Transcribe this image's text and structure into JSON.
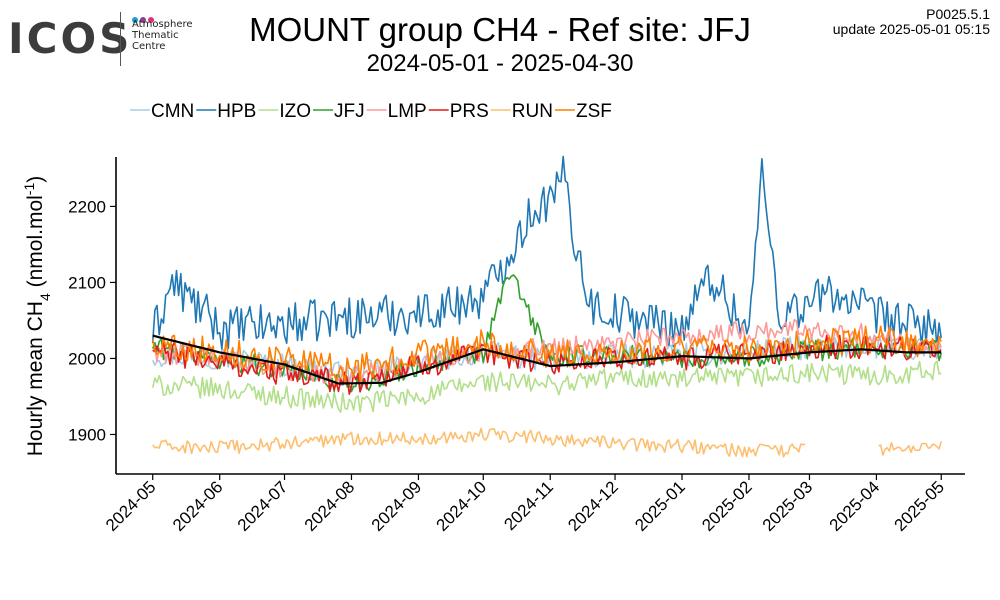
{
  "logo": {
    "word": "ICOS",
    "lines": [
      "Atmosphere",
      "Thematic",
      "Centre"
    ],
    "dot_colors": [
      "#1a9fd9",
      "#8e3c96",
      "#e72f78"
    ]
  },
  "header": {
    "version": "P0025.5.1",
    "update": "update  2025-05-01 05:15"
  },
  "chart_data": {
    "type": "line",
    "title": "MOUNT group CH4 - Ref site: JFJ",
    "subtitle": "2024-05-01 - 2025-04-30",
    "ylabel": "Hourly mean",
    "ylim": [
      1848,
      2265
    ],
    "yticks": [
      1900,
      2000,
      2100,
      2200
    ],
    "xlim": [
      "2024-04-14",
      "2025-05-12"
    ],
    "xticks": [
      "2024-05",
      "2024-06",
      "2024-07",
      "2024-08",
      "2024-09",
      "2024-10",
      "2024-11",
      "2024-12",
      "2025-01",
      "2025-02",
      "2025-03",
      "2025-04",
      "2025-05"
    ],
    "legend_position": "top",
    "grid": false,
    "series": [
      {
        "name": "CMN",
        "color": "#a6cee3",
        "x": [
          "2024-05-01",
          "2024-06-01",
          "2024-07-01",
          "2024-08-01",
          "2024-09-01",
          "2024-10-01",
          "2024-11-01",
          "2024-12-01",
          "2025-01-01",
          "2025-02-01",
          "2025-03-01",
          "2025-04-01",
          "2025-05-01"
        ],
        "y": [
          2005,
          2002,
          1992,
          1978,
          1995,
          2008,
          1998,
          2002,
          2005,
          2008,
          2015,
          2015,
          2010
        ]
      },
      {
        "name": "HPB",
        "color": "#1f78b4",
        "x": [
          "2024-05-01",
          "2024-05-10",
          "2024-06-01",
          "2024-07-01",
          "2024-08-01",
          "2024-09-01",
          "2024-10-01",
          "2024-10-25",
          "2024-11-03",
          "2024-11-08",
          "2024-11-12",
          "2024-11-20",
          "2024-12-01",
          "2025-01-01",
          "2025-01-14",
          "2025-02-01",
          "2025-02-07",
          "2025-02-15",
          "2025-03-01",
          "2025-03-10",
          "2025-04-01",
          "2025-04-15",
          "2025-05-01"
        ],
        "y": [
          2030,
          2100,
          2040,
          2045,
          2055,
          2060,
          2080,
          2200,
          2210,
          2248,
          2160,
          2070,
          2060,
          2040,
          2110,
          2035,
          2245,
          2060,
          2070,
          2090,
          2055,
          2045,
          2040
        ]
      },
      {
        "name": "IZO",
        "color": "#b2df8a",
        "x": [
          "2024-05-01",
          "2024-06-01",
          "2024-07-01",
          "2024-08-01",
          "2024-09-01",
          "2024-10-01",
          "2024-11-01",
          "2024-12-01",
          "2025-01-01",
          "2025-02-01",
          "2025-03-01",
          "2025-04-01",
          "2025-05-01"
        ],
        "y": [
          1965,
          1960,
          1950,
          1940,
          1950,
          1970,
          1965,
          1975,
          1972,
          1975,
          1980,
          1978,
          1985
        ]
      },
      {
        "name": "JFJ",
        "color": "#33a02c",
        "x": [
          "2024-05-01",
          "2024-06-01",
          "2024-07-01",
          "2024-08-01",
          "2024-09-01",
          "2024-10-01",
          "2024-10-13",
          "2024-11-01",
          "2024-12-01",
          "2025-01-01",
          "2025-02-01",
          "2025-03-01",
          "2025-04-01",
          "2025-05-01"
        ],
        "y": [
          2015,
          2000,
          1985,
          1965,
          1990,
          2005,
          2115,
          2000,
          2005,
          2000,
          2002,
          2010,
          2015,
          2010
        ]
      },
      {
        "name": "LMP",
        "color": "#fb9a99",
        "x": [
          "2024-05-01",
          "2024-06-01",
          "2024-07-01",
          "2024-08-01",
          "2024-09-01",
          "2024-10-01",
          "2024-11-01",
          "2024-12-01",
          "2025-01-01",
          "2025-02-01",
          "2025-03-01",
          "2025-04-01",
          "2025-05-01"
        ],
        "y": [
          2010,
          2000,
          1985,
          1975,
          1995,
          2010,
          2015,
          2020,
          2030,
          2035,
          2040,
          2030,
          2015
        ]
      },
      {
        "name": "PRS",
        "color": "#e31a1c",
        "x": [
          "2024-05-01",
          "2024-06-01",
          "2024-07-01",
          "2024-08-01",
          "2024-09-01",
          "2024-10-01",
          "2024-11-01",
          "2024-12-01",
          "2025-01-01",
          "2025-02-01",
          "2025-03-01",
          "2025-04-01",
          "2025-05-01"
        ],
        "y": [
          2010,
          1995,
          1980,
          1968,
          1990,
          2005,
          1995,
          2000,
          2000,
          2005,
          2015,
          2015,
          2010
        ]
      },
      {
        "name": "RUN",
        "color": "#fdbf6f",
        "x": [
          "2024-05-01",
          "2024-06-01",
          "2024-07-01",
          "2024-08-01",
          "2024-09-01",
          "2024-10-01",
          "2024-11-01",
          "2024-12-01",
          "2025-01-01",
          "2025-02-01",
          "2025-02-27",
          "2025-03-24",
          "2025-04-01",
          "2025-05-01"
        ],
        "y": [
          1885,
          1882,
          1888,
          1895,
          1895,
          1900,
          1895,
          1888,
          1885,
          1878,
          1880,
          null,
          1880,
          1885
        ]
      },
      {
        "name": "ZSF",
        "color": "#ff7f00",
        "x": [
          "2024-05-01",
          "2024-06-01",
          "2024-07-01",
          "2024-08-01",
          "2024-09-01",
          "2024-10-01",
          "2024-11-01",
          "2024-12-01",
          "2025-01-01",
          "2025-02-01",
          "2025-03-01",
          "2025-04-01",
          "2025-05-01"
        ],
        "y": [
          2020,
          2010,
          1998,
          1985,
          2005,
          2020,
          2005,
          2010,
          2015,
          2012,
          2020,
          2025,
          2015
        ]
      }
    ],
    "reference_curve": {
      "color": "#000000",
      "x": [
        "2024-05-01",
        "2024-06-01",
        "2024-07-01",
        "2024-07-26",
        "2024-08-15",
        "2024-09-01",
        "2024-10-01",
        "2024-11-01",
        "2024-12-01",
        "2025-01-01",
        "2025-02-01",
        "2025-03-01",
        "2025-03-25",
        "2025-04-15",
        "2025-05-01"
      ],
      "y": [
        2030,
        2008,
        1992,
        1967,
        1968,
        1982,
        2012,
        1990,
        1995,
        2003,
        2000,
        2008,
        2012,
        2008,
        2008
      ]
    }
  }
}
